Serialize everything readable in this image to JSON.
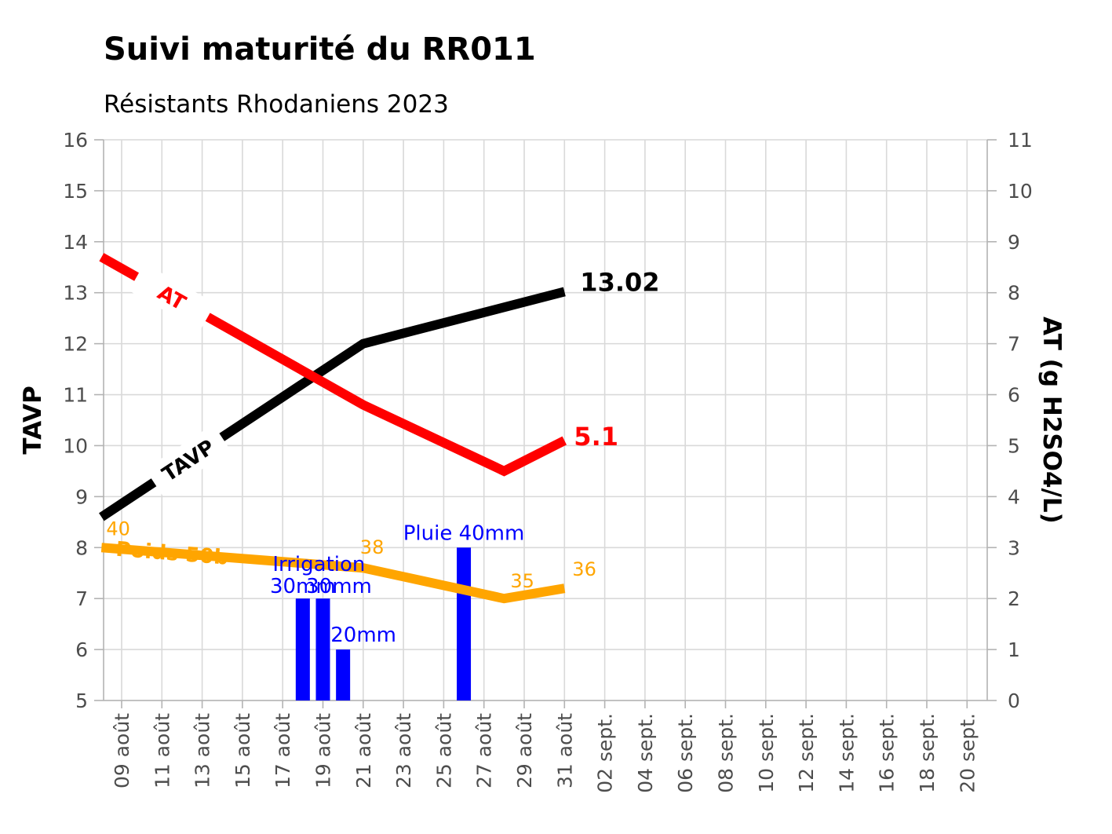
{
  "chart_data": {
    "type": "line",
    "title": "Suivi maturité du RR011",
    "subtitle": "Résistants Rhodaniens 2023",
    "ylabel": "TAVP",
    "y2label": "AT (g H2SO4/L)",
    "ylim": [
      5,
      16
    ],
    "y2lim": [
      0,
      11
    ],
    "y_ticks": [
      "5",
      "6",
      "7",
      "8",
      "9",
      "10",
      "11",
      "12",
      "13",
      "14",
      "15",
      "16"
    ],
    "y2_ticks": [
      "0",
      "1",
      "2",
      "3",
      "4",
      "5",
      "6",
      "7",
      "8",
      "9",
      "10",
      "11"
    ],
    "x_start_day": 9,
    "x_end_day": 42,
    "x_ticks": [
      {
        "day": 9,
        "label": "09 août"
      },
      {
        "day": 11,
        "label": "11 août"
      },
      {
        "day": 13,
        "label": "13 août"
      },
      {
        "day": 15,
        "label": "15 août"
      },
      {
        "day": 17,
        "label": "17 août"
      },
      {
        "day": 19,
        "label": "19 août"
      },
      {
        "day": 21,
        "label": "21 août"
      },
      {
        "day": 23,
        "label": "23 août"
      },
      {
        "day": 25,
        "label": "25 août"
      },
      {
        "day": 27,
        "label": "27 août"
      },
      {
        "day": 29,
        "label": "29 août"
      },
      {
        "day": 31,
        "label": "31 août"
      },
      {
        "day": 33,
        "label": "02 sept."
      },
      {
        "day": 35,
        "label": "04 sept."
      },
      {
        "day": 37,
        "label": "06 sept."
      },
      {
        "day": 39,
        "label": "08 sept."
      },
      {
        "day": 41,
        "label": "10 sept."
      },
      {
        "day": 43,
        "label": "12 sept."
      },
      {
        "day": 45,
        "label": "14 sept."
      },
      {
        "day": 47,
        "label": "16 sept."
      },
      {
        "day": 49,
        "label": "18 sept."
      },
      {
        "day": 51,
        "label": "20 sept."
      }
    ],
    "series": [
      {
        "name": "TAVP",
        "axis": "left",
        "color": "#000000",
        "label": "TAVP",
        "end_label": "13.02",
        "x": [
          8,
          21,
          31
        ],
        "y": [
          8.6,
          12.0,
          13.02
        ]
      },
      {
        "name": "AT",
        "axis": "right",
        "color": "#ff0000",
        "label": "AT",
        "end_label": "5.1",
        "x": [
          8,
          21,
          28,
          31
        ],
        "y": [
          8.7,
          5.8,
          4.5,
          5.1
        ]
      },
      {
        "name": "Poids 50 baies",
        "axis": "left",
        "color": "#ffa500",
        "label": "Poids 50b",
        "x": [
          8,
          21,
          28,
          31
        ],
        "y": [
          8.0,
          7.6,
          7.0,
          7.2
        ],
        "point_labels": [
          {
            "x": 8,
            "y": 8.0,
            "text": "40"
          },
          {
            "x": 21,
            "y": 7.6,
            "text": "38"
          },
          {
            "x": 28,
            "y": 7.0,
            "text": "35"
          },
          {
            "x": 31,
            "y": 7.2,
            "text": "36"
          }
        ]
      }
    ],
    "bars": {
      "name": "Pluie / Irrigation",
      "axis": "right",
      "color": "#0000ff",
      "items": [
        {
          "x": 18,
          "value": 2,
          "label": ""
        },
        {
          "x": 19,
          "value": 2,
          "label": ""
        },
        {
          "x": 20,
          "value": 1,
          "label": "20mm"
        },
        {
          "x": 26,
          "value": 3,
          "label": "Pluie 40mm"
        }
      ],
      "annotations": [
        "Irrigation",
        "30mm",
        "30mm"
      ]
    }
  }
}
